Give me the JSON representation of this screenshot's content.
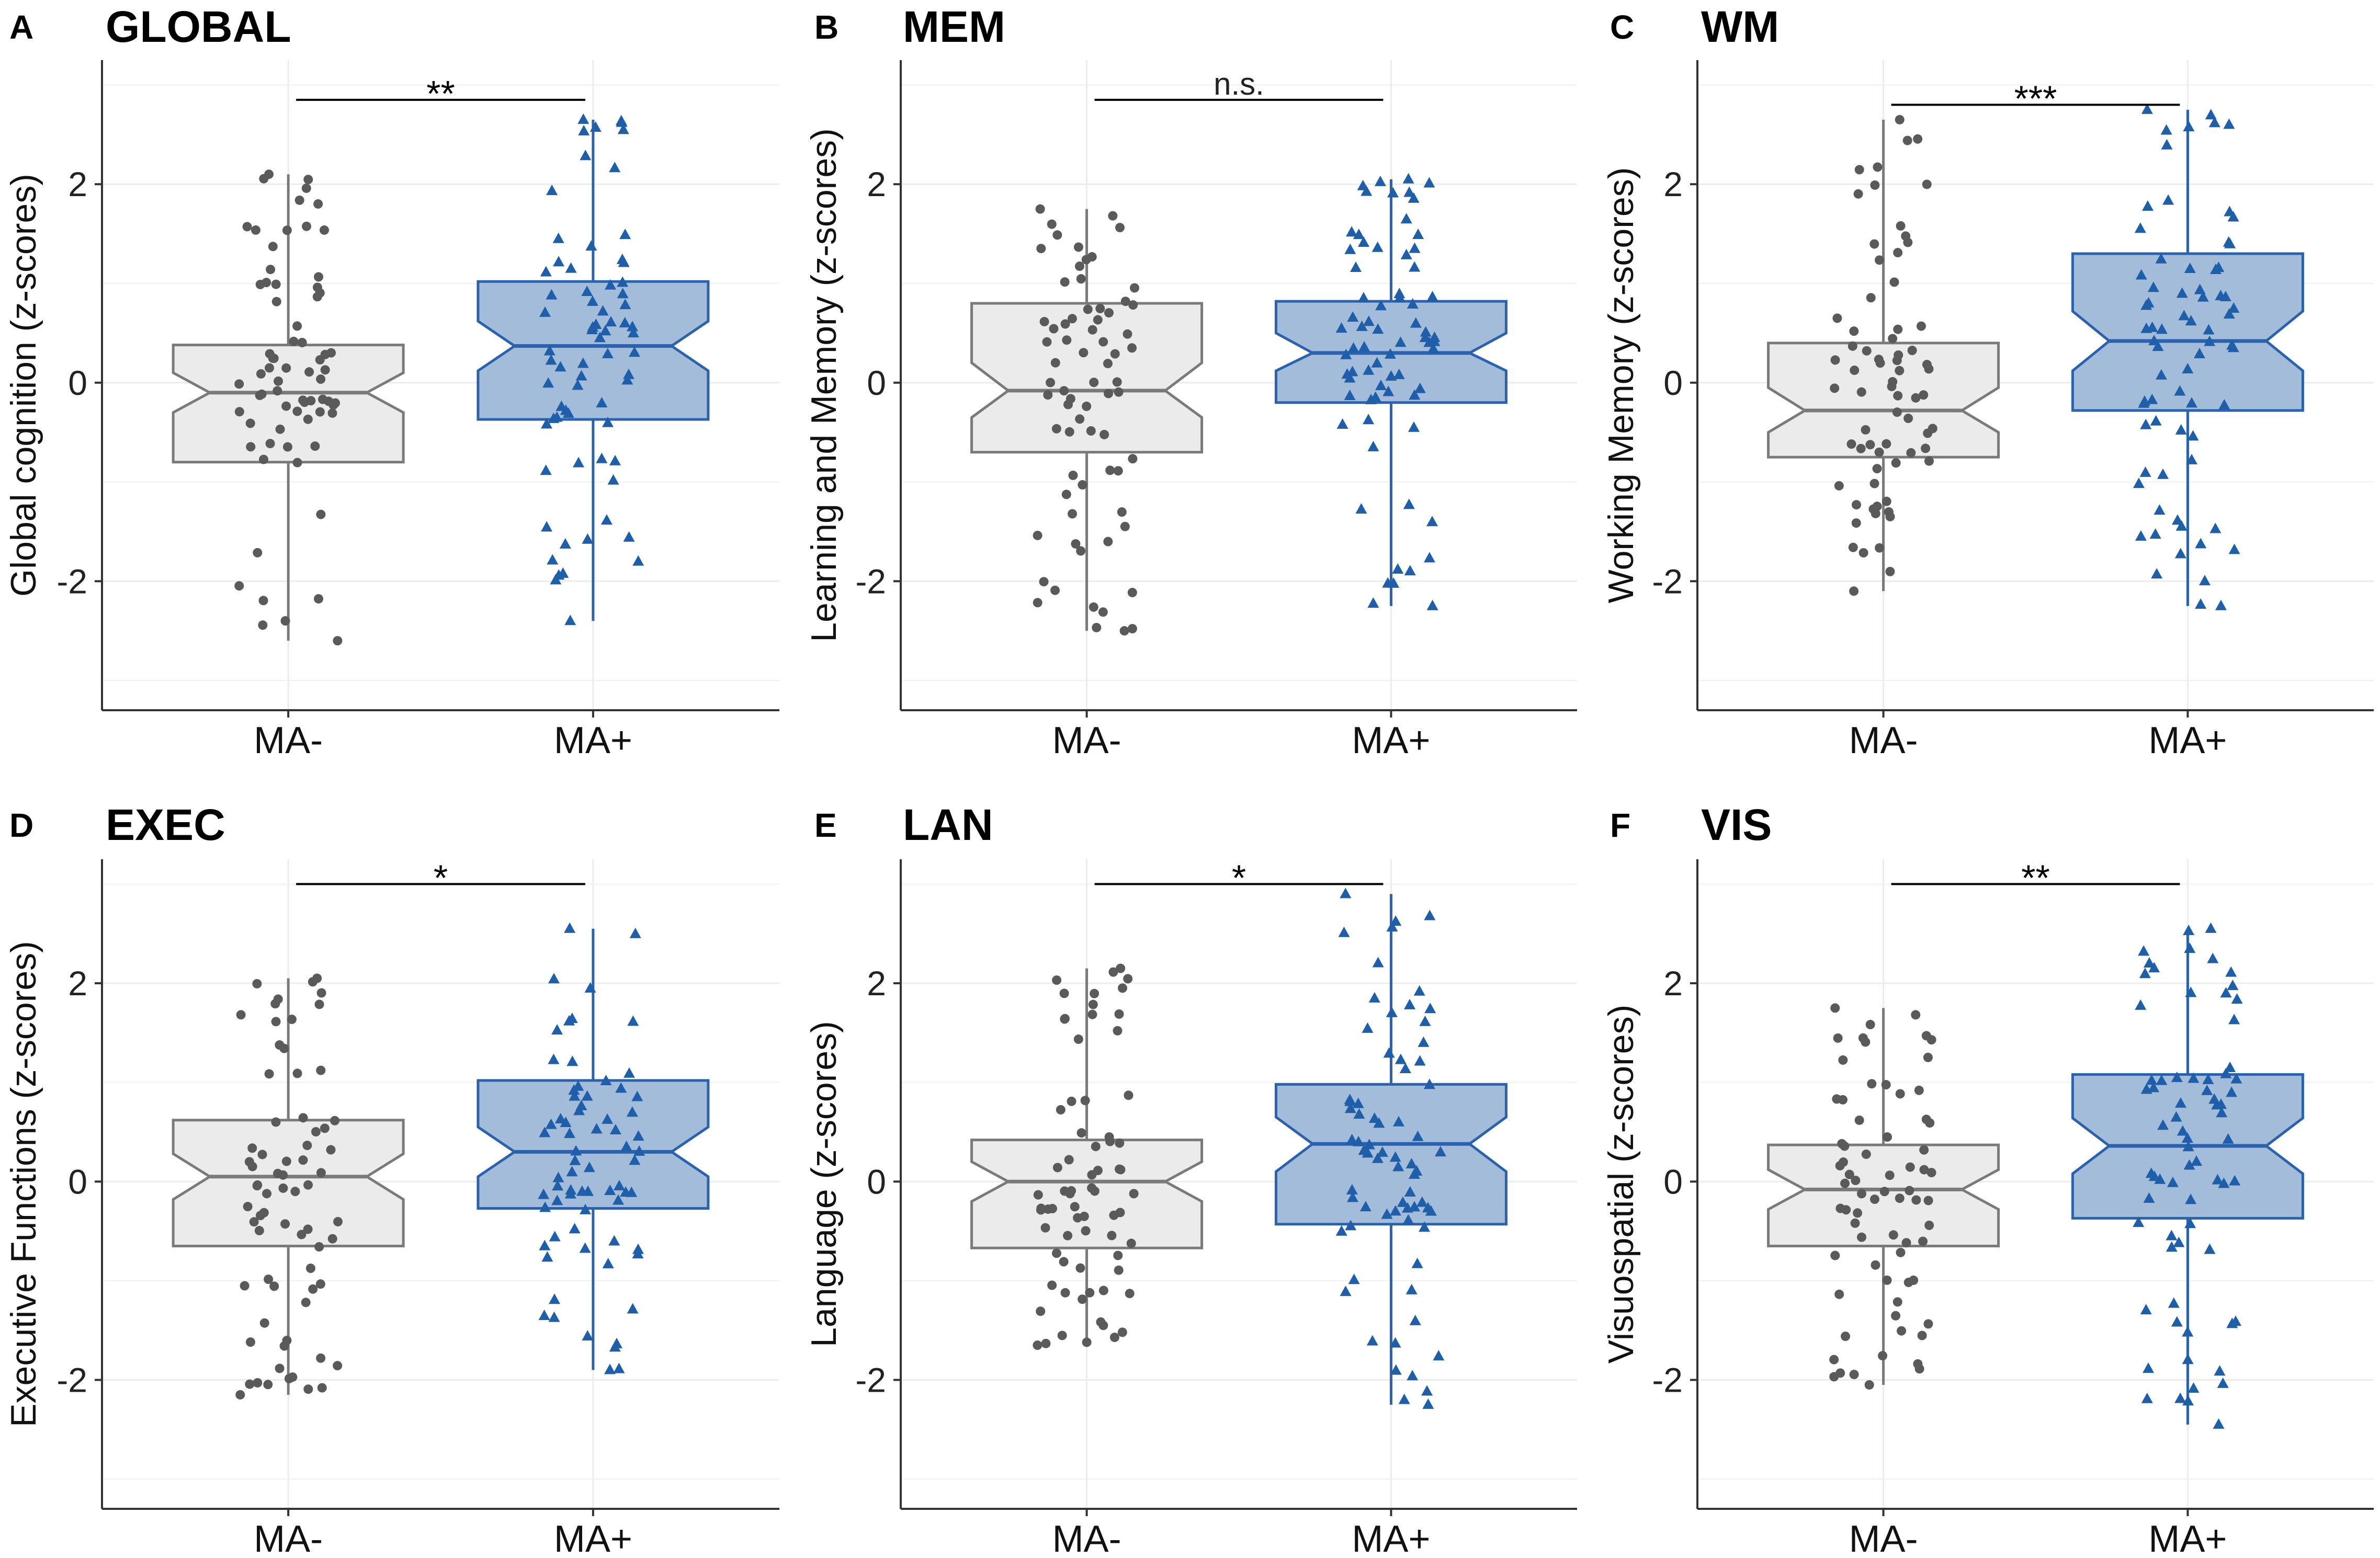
{
  "figure": {
    "colors": {
      "grid": "#ececec",
      "axis": "#333333",
      "ma_minus_fill": "#ebebeb",
      "ma_minus_stroke": "#7a7a7a",
      "ma_minus_point": "#5a5a5a",
      "ma_plus_fill": "#a3bcd9",
      "ma_plus_stroke": "#2a62ad",
      "ma_plus_point": "#1f5ea8"
    }
  },
  "chart_data": [
    {
      "type": "boxplot",
      "letter": "A",
      "title": "GLOBAL",
      "ylabel": "Global cognition (z-scores)",
      "categories": [
        "MA-",
        "MA+"
      ],
      "ylim": [
        -3.3,
        3.25
      ],
      "yticks": [
        -2,
        0,
        2
      ],
      "significance": "**",
      "sig_y": 2.85,
      "groups": [
        {
          "name": "MA-",
          "min": -2.6,
          "q1": -0.8,
          "median": -0.1,
          "q3": 0.38,
          "max": 2.1,
          "notch": [
            -0.3,
            0.1
          ]
        },
        {
          "name": "MA+",
          "min": -2.4,
          "q1": -0.37,
          "median": 0.37,
          "q3": 1.02,
          "max": 2.65,
          "notch": [
            0.12,
            0.62
          ]
        }
      ]
    },
    {
      "type": "boxplot",
      "letter": "B",
      "title": "MEM",
      "ylabel": "Learning and Memory (z-scores)",
      "categories": [
        "MA-",
        "MA+"
      ],
      "ylim": [
        -3.3,
        3.25
      ],
      "yticks": [
        -2,
        0,
        2
      ],
      "significance": "n.s.",
      "sig_y": 2.85,
      "groups": [
        {
          "name": "MA-",
          "min": -2.5,
          "q1": -0.7,
          "median": -0.08,
          "q3": 0.8,
          "max": 1.75,
          "notch": [
            -0.35,
            0.2
          ]
        },
        {
          "name": "MA+",
          "min": -2.25,
          "q1": -0.2,
          "median": 0.3,
          "q3": 0.82,
          "max": 2.05,
          "notch": [
            0.12,
            0.5
          ]
        }
      ]
    },
    {
      "type": "boxplot",
      "letter": "C",
      "title": "WM",
      "ylabel": "Working Memory (z-scores)",
      "categories": [
        "MA-",
        "MA+"
      ],
      "ylim": [
        -3.3,
        3.25
      ],
      "yticks": [
        -2,
        0,
        2
      ],
      "significance": "***",
      "sig_y": 2.8,
      "groups": [
        {
          "name": "MA-",
          "min": -2.1,
          "q1": -0.75,
          "median": -0.28,
          "q3": 0.4,
          "max": 2.65,
          "notch": [
            -0.5,
            -0.05
          ]
        },
        {
          "name": "MA+",
          "min": -2.25,
          "q1": -0.28,
          "median": 0.42,
          "q3": 1.3,
          "max": 2.75,
          "notch": [
            0.12,
            0.72
          ]
        }
      ]
    },
    {
      "type": "boxplot",
      "letter": "D",
      "title": "EXEC",
      "ylabel": "Executive Functions (z-scores)",
      "categories": [
        "MA-",
        "MA+"
      ],
      "ylim": [
        -3.3,
        3.25
      ],
      "yticks": [
        -2,
        0,
        2
      ],
      "significance": "*",
      "sig_y": 3.0,
      "groups": [
        {
          "name": "MA-",
          "min": -2.15,
          "q1": -0.65,
          "median": 0.05,
          "q3": 0.62,
          "max": 2.05,
          "notch": [
            -0.18,
            0.28
          ]
        },
        {
          "name": "MA+",
          "min": -1.9,
          "q1": -0.27,
          "median": 0.3,
          "q3": 1.02,
          "max": 2.55,
          "notch": [
            0.05,
            0.55
          ]
        }
      ]
    },
    {
      "type": "boxplot",
      "letter": "E",
      "title": "LAN",
      "ylabel": "Language (z-scores)",
      "categories": [
        "MA-",
        "MA+"
      ],
      "ylim": [
        -3.3,
        3.25
      ],
      "yticks": [
        -2,
        0,
        2
      ],
      "significance": "*",
      "sig_y": 3.0,
      "groups": [
        {
          "name": "MA-",
          "min": -1.65,
          "q1": -0.67,
          "median": 0.0,
          "q3": 0.42,
          "max": 2.15,
          "notch": [
            -0.2,
            0.2
          ]
        },
        {
          "name": "MA+",
          "min": -2.25,
          "q1": -0.43,
          "median": 0.38,
          "q3": 0.98,
          "max": 2.9,
          "notch": [
            0.1,
            0.65
          ]
        }
      ]
    },
    {
      "type": "boxplot",
      "letter": "F",
      "title": "VIS",
      "ylabel": "Visuospatial (z-scores)",
      "categories": [
        "MA-",
        "MA+"
      ],
      "ylim": [
        -3.3,
        3.25
      ],
      "yticks": [
        -2,
        0,
        2
      ],
      "significance": "**",
      "sig_y": 3.0,
      "groups": [
        {
          "name": "MA-",
          "min": -2.05,
          "q1": -0.65,
          "median": -0.08,
          "q3": 0.37,
          "max": 1.75,
          "notch": [
            -0.28,
            0.12
          ]
        },
        {
          "name": "MA+",
          "min": -2.45,
          "q1": -0.37,
          "median": 0.36,
          "q3": 1.08,
          "max": 2.55,
          "notch": [
            0.08,
            0.64
          ]
        }
      ]
    }
  ]
}
